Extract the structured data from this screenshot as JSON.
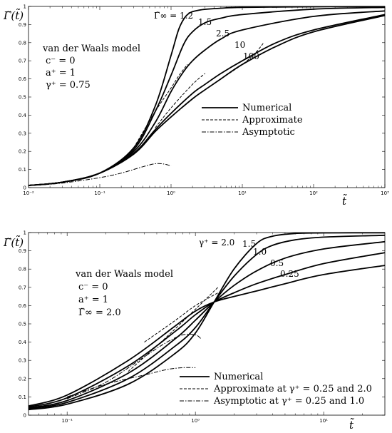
{
  "chart_data": [
    {
      "type": "line",
      "x_scale": "log",
      "xlim": [
        0.01,
        1000
      ],
      "ylim": [
        0,
        1.0
      ],
      "xticks": [
        "10^-2",
        "10^-1",
        "10^0",
        "10^1",
        "10^2",
        "10^3"
      ],
      "yticks": [
        "0",
        "0.1",
        "0.2",
        "0.3",
        "0.4",
        "0.5",
        "0.6",
        "0.7",
        "0.8",
        "0.9",
        "1"
      ],
      "xlabel": "t̃",
      "ylabel": "Γ̃(t̃)",
      "annotation": [
        "van der Waals model",
        "c⁻ = 0",
        "a⁺ = 1",
        "γ⁺ = 0.75"
      ],
      "legend": [
        {
          "label": "Numerical",
          "style": "solid"
        },
        {
          "label": "Approximate",
          "style": "dashed"
        },
        {
          "label": "Asymptotic",
          "style": "dashdot"
        }
      ],
      "curve_labels": [
        "Γ̃∞ = 1.2",
        "1.5",
        "2.5",
        "10",
        "100"
      ],
      "series": [
        {
          "name": "1.2",
          "style": "solid",
          "x": [
            0.01,
            0.03,
            0.1,
            0.3,
            0.6,
            1.0,
            1.3,
            1.7,
            2.5,
            5,
            10,
            100,
            1000
          ],
          "y": [
            0.012,
            0.03,
            0.08,
            0.22,
            0.45,
            0.73,
            0.88,
            0.955,
            0.98,
            0.99,
            0.995,
            0.998,
            0.999
          ]
        },
        {
          "name": "1.5",
          "style": "solid",
          "x": [
            0.01,
            0.03,
            0.1,
            0.3,
            0.6,
            1.0,
            1.5,
            2,
            3,
            5,
            10,
            100,
            1000
          ],
          "y": [
            0.012,
            0.03,
            0.08,
            0.21,
            0.42,
            0.62,
            0.79,
            0.86,
            0.91,
            0.935,
            0.955,
            0.985,
            0.995
          ]
        },
        {
          "name": "2.5",
          "style": "solid",
          "x": [
            0.01,
            0.03,
            0.1,
            0.3,
            0.6,
            1.0,
            1.5,
            2,
            3,
            5,
            10,
            100,
            1000
          ],
          "y": [
            0.012,
            0.03,
            0.08,
            0.2,
            0.36,
            0.53,
            0.64,
            0.7,
            0.76,
            0.82,
            0.87,
            0.945,
            0.975
          ]
        },
        {
          "name": "10",
          "style": "solid",
          "x": [
            0.01,
            0.03,
            0.1,
            0.3,
            0.6,
            1.0,
            2,
            3,
            5,
            10,
            30,
            100,
            1000
          ],
          "y": [
            0.012,
            0.03,
            0.08,
            0.19,
            0.32,
            0.41,
            0.52,
            0.57,
            0.63,
            0.7,
            0.8,
            0.87,
            0.955
          ]
        },
        {
          "name": "100",
          "style": "solid",
          "x": [
            0.01,
            0.03,
            0.1,
            0.3,
            0.6,
            1.0,
            2,
            3,
            5,
            10,
            30,
            100,
            1000
          ],
          "y": [
            0.012,
            0.03,
            0.08,
            0.185,
            0.31,
            0.39,
            0.49,
            0.54,
            0.6,
            0.68,
            0.78,
            0.86,
            0.95
          ]
        },
        {
          "name": "approx-1.2",
          "style": "dashed",
          "x": [
            0.3,
            0.6,
            1.0,
            1.3,
            1.7
          ],
          "y": [
            0.22,
            0.42,
            0.55,
            0.62,
            0.68
          ]
        },
        {
          "name": "approx-100",
          "style": "dashed",
          "x": [
            1,
            2,
            3,
            5,
            10,
            15,
            20
          ],
          "y": [
            0.39,
            0.49,
            0.54,
            0.6,
            0.68,
            0.74,
            0.8
          ]
        },
        {
          "name": "approx-mid",
          "style": "dashed",
          "x": [
            0.6,
            1.0,
            2,
            3
          ],
          "y": [
            0.33,
            0.44,
            0.57,
            0.63
          ]
        },
        {
          "name": "asymptotic",
          "style": "dashdot",
          "x": [
            0.01,
            0.03,
            0.1,
            0.2,
            0.4,
            0.6,
            0.8,
            1.0
          ],
          "y": [
            0.01,
            0.025,
            0.055,
            0.08,
            0.115,
            0.132,
            0.13,
            0.12
          ]
        }
      ]
    },
    {
      "type": "line",
      "x_scale": "log",
      "xlim": [
        0.05,
        30
      ],
      "ylim": [
        0,
        1.0
      ],
      "xticks": [
        "10^-1",
        "10^0",
        "10^1"
      ],
      "yticks": [
        "0",
        "0.1",
        "0.2",
        "0.3",
        "0.4",
        "0.5",
        "0.6",
        "0.7",
        "0.8",
        "0.9",
        "1"
      ],
      "xlabel": "t̃",
      "ylabel": "Γ̃(t̃)",
      "annotation": [
        "van der Waals model",
        "c⁻ = 0",
        "a⁺ = 1",
        "Γ̃∞ = 2.0"
      ],
      "legend": [
        {
          "label": "Numerical",
          "style": "solid"
        },
        {
          "label": "Approximate at γ⁺ = 0.25 and 2.0",
          "style": "dashed"
        },
        {
          "label": "Asymptotic at γ⁺ = 0.25 and 1.0",
          "style": "dashdot"
        }
      ],
      "curve_labels": [
        "γ⁺ = 2.0",
        "1.5",
        "1.0",
        "0.5",
        "0.25"
      ],
      "series": [
        {
          "name": "2.0",
          "style": "solid",
          "x": [
            0.05,
            0.1,
            0.3,
            0.7,
            1.0,
            1.4,
            2,
            3,
            4,
            6,
            10,
            30
          ],
          "y": [
            0.03,
            0.06,
            0.17,
            0.34,
            0.45,
            0.62,
            0.8,
            0.94,
            0.98,
            0.995,
            0.998,
            0.999
          ]
        },
        {
          "name": "1.5",
          "style": "solid",
          "x": [
            0.05,
            0.1,
            0.3,
            0.7,
            1.0,
            1.4,
            2,
            3,
            4,
            6,
            10,
            30
          ],
          "y": [
            0.035,
            0.07,
            0.2,
            0.38,
            0.48,
            0.62,
            0.76,
            0.88,
            0.93,
            0.96,
            0.975,
            0.985
          ]
        },
        {
          "name": "1.0",
          "style": "solid",
          "x": [
            0.05,
            0.1,
            0.3,
            0.7,
            1.0,
            1.4,
            2,
            3,
            5,
            10,
            30
          ],
          "y": [
            0.04,
            0.08,
            0.23,
            0.42,
            0.52,
            0.62,
            0.71,
            0.79,
            0.86,
            0.91,
            0.95
          ]
        },
        {
          "name": "0.5",
          "style": "solid",
          "x": [
            0.05,
            0.1,
            0.3,
            0.7,
            1.0,
            1.4,
            2,
            3,
            5,
            10,
            30
          ],
          "y": [
            0.045,
            0.095,
            0.27,
            0.46,
            0.55,
            0.62,
            0.67,
            0.72,
            0.77,
            0.83,
            0.89
          ]
        },
        {
          "name": "0.25",
          "style": "solid",
          "x": [
            0.05,
            0.1,
            0.3,
            0.7,
            1.0,
            1.4,
            2,
            3,
            5,
            10,
            30
          ],
          "y": [
            0.05,
            0.11,
            0.3,
            0.49,
            0.57,
            0.62,
            0.65,
            0.68,
            0.72,
            0.77,
            0.82
          ]
        },
        {
          "name": "approx-2.0",
          "style": "dashed",
          "x": [
            0.3,
            0.6,
            1.0,
            1.5
          ],
          "y": [
            0.24,
            0.43,
            0.58,
            0.7
          ]
        },
        {
          "name": "approx-0.25",
          "style": "dashed",
          "x": [
            0.4,
            0.7,
            1.0,
            1.5
          ],
          "y": [
            0.4,
            0.52,
            0.6,
            0.67
          ]
        },
        {
          "name": "asymptotic-1.0",
          "style": "dashdot",
          "x": [
            0.1,
            0.2,
            0.4,
            0.6,
            0.8,
            1.0,
            1.1
          ],
          "y": [
            0.09,
            0.18,
            0.32,
            0.4,
            0.44,
            0.44,
            0.42
          ]
        },
        {
          "name": "asymptotic-0.25",
          "style": "dashdot",
          "x": [
            0.1,
            0.2,
            0.4,
            0.6,
            0.8,
            1.0
          ],
          "y": [
            0.1,
            0.17,
            0.22,
            0.25,
            0.26,
            0.26
          ]
        }
      ]
    }
  ]
}
